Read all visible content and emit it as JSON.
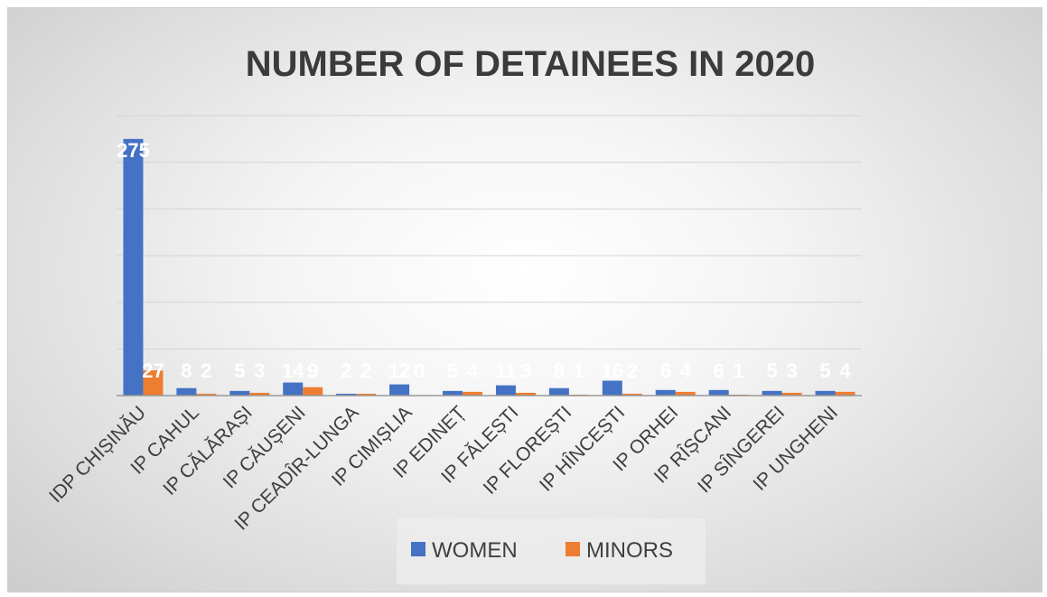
{
  "chart_data": {
    "type": "bar",
    "title": "NUMBER OF DETAINEES IN 2020",
    "categories": [
      "IDP CHIȘINĂU",
      "IP CAHUL",
      "IP CĂLĂRAȘI",
      "IP CĂUȘENI",
      "IP CEADÎR-LUNGA",
      "IP CIMIȘLIA",
      "IP EDINEȚ",
      "IP FĂLEȘTI",
      "IP FLOREȘTI",
      "IP HÎNCEȘTI",
      "IP ORHEI",
      "IP RÎȘCANI",
      "IP SÎNGEREI",
      "IP UNGHENI"
    ],
    "series": [
      {
        "name": "WOMEN",
        "color": "#4472C4",
        "values": [
          275,
          8,
          5,
          14,
          2,
          12,
          5,
          11,
          8,
          16,
          6,
          6,
          5,
          5
        ]
      },
      {
        "name": "MINORS",
        "color": "#ED7D31",
        "values": [
          27,
          2,
          3,
          9,
          2,
          0,
          4,
          3,
          1,
          2,
          4,
          1,
          3,
          4
        ]
      }
    ],
    "ylim": [
      0,
      300
    ],
    "grid": true,
    "legend_position": "bottom"
  }
}
